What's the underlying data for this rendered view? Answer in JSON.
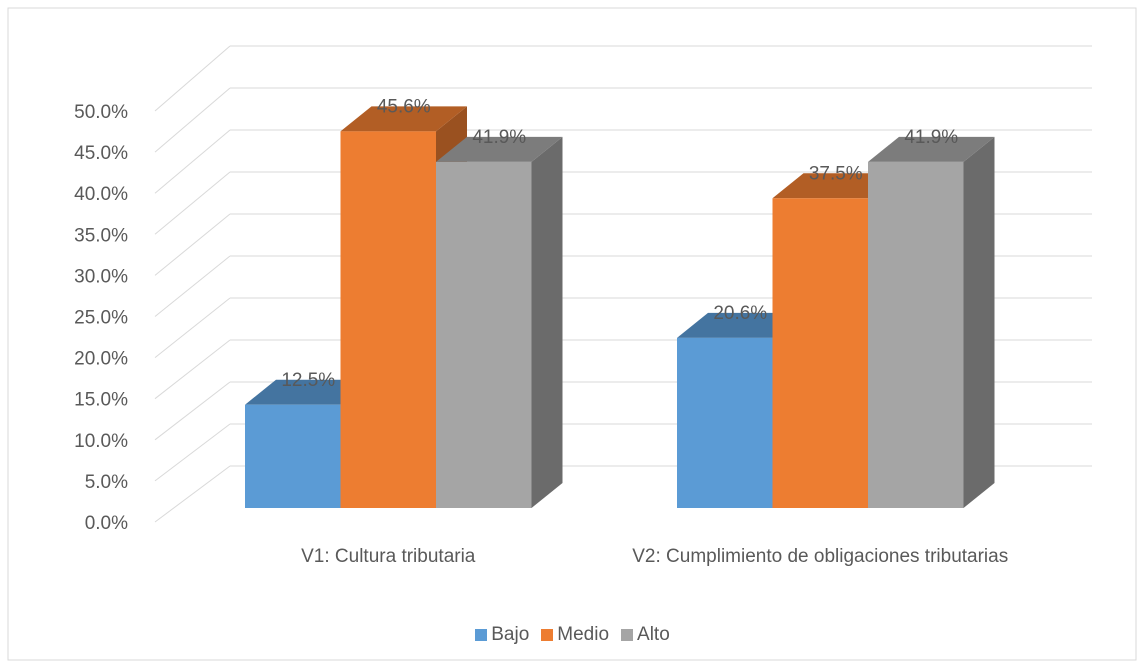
{
  "chart_data": {
    "type": "bar3d",
    "categories": [
      "V1: Cultura tributaria",
      "V2: Cumplimiento de obligaciones tributarias"
    ],
    "series": [
      {
        "name": "Bajo",
        "color": "#5b9bd5",
        "values": [
          12.5,
          20.6
        ],
        "value_labels": [
          "12.5%",
          "20.6%"
        ]
      },
      {
        "name": "Medio",
        "color": "#ed7d31",
        "values": [
          45.6,
          37.5
        ],
        "value_labels": [
          "45.6%",
          "37.5%"
        ]
      },
      {
        "name": "Alto",
        "color": "#a5a5a5",
        "values": [
          41.9,
          41.9
        ],
        "value_labels": [
          "41.9%",
          "41.9%"
        ]
      }
    ],
    "ylim": [
      0,
      50
    ],
    "yticks": [
      {
        "value": 0,
        "label": "0.0%"
      },
      {
        "value": 5,
        "label": "5.0%"
      },
      {
        "value": 10,
        "label": "10.0%"
      },
      {
        "value": 15,
        "label": "15.0%"
      },
      {
        "value": 20,
        "label": "20.0%"
      },
      {
        "value": 25,
        "label": "25.0%"
      },
      {
        "value": 30,
        "label": "30.0%"
      },
      {
        "value": 35,
        "label": "35.0%"
      },
      {
        "value": 40,
        "label": "40.0%"
      },
      {
        "value": 45,
        "label": "45.0%"
      },
      {
        "value": 50,
        "label": "50.0%"
      }
    ],
    "grid": true,
    "legend": "bottom"
  }
}
